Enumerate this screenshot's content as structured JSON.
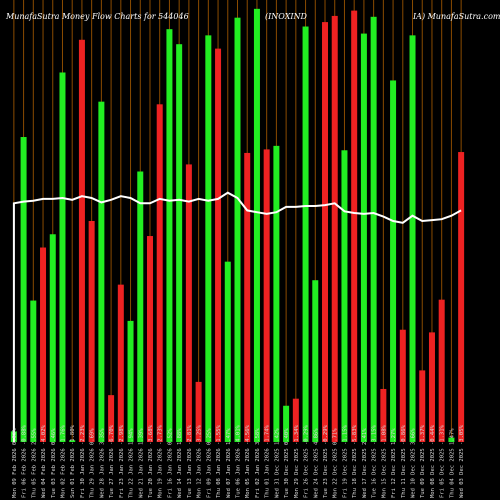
{
  "header": {
    "left": "MunafaSutra  Money Flow  Charts for 544046",
    "middle": "(INOXIND",
    "right": "IA) MunafaSutra.com"
  },
  "colors": {
    "background": "#000000",
    "up_bar": "#22ee22",
    "down_bar": "#ee2222",
    "grid_line": "#8a4b00",
    "flow_line": "#ffffff"
  },
  "chart_data": {
    "type": "bar",
    "title": "MunafaSutra  Money Flow  Charts for 544046",
    "categories": [
      "Mon 09 Feb 2026 0.93%",
      "Fri 06 Feb 2026 -0.88%",
      "Thu 05 Feb 2026 2.55%",
      "Wed 04 Feb 2026 -4.02%",
      "Tue 03 Feb 2026 0.46%",
      "Mon 02 Feb 2026 -1.76%",
      "Sun 01 Feb 2026 -1.80%",
      "Fri 30 Jan 2026 -2.23%",
      "Thu 29 Jan 2026 0.69%",
      "Wed 28 Jan 2026 3.35%",
      "Tue 27 Jan 2026 -6.70%",
      "Fri 23 Jan 2026 -2.98%",
      "Thu 22 Jan 2026 1.94%",
      "Wed 21 Jan 2026 1.39%",
      "Tue 20 Jan 2026 -3.68%",
      "Mon 19 Jan 2026 -2.73%",
      "Fri 16 Jan 2026 0.52%",
      "Wed 14 Jan 2026 1.88%",
      "Tue 13 Jan 2026 -2.81%",
      "Mon 12 Jan 2026 -3.25%",
      "Fri 09 Jan 2026 0.25%",
      "Thu 08 Jan 2026 -1.55%",
      "Wed 07 Jan 2026 1.47%",
      "Tue 06 Jan 2026 -4.01%",
      "Mon 05 Jan 2026 -4.56%",
      "Fri 02 Jan 2026 3.58%",
      "Thu 01 Jan 2026 -1.74%",
      "Wed 31 Dec 2025 1.42%",
      "Tue 30 Dec 2025 0.40%",
      "Mon 29 Dec 2025 -1.34%",
      "Fri 26 Dec 2025 -0.29%",
      "Wed 24 Dec 2025 4.86%",
      "Tue 23 Dec 2025 -0.29%",
      "Mon 22 Dec 2025 0.71%",
      "Fri 19 Dec 2025 -1.15%",
      "Thu 18 Dec 2025 -5.83%",
      "Wed 17 Dec 2025 2.41%",
      "Tue 16 Dec 2025 -3.15%",
      "Mon 15 Dec 2025 -1.08%",
      "Fri 12 Dec 2025 1.27%",
      "Thu 11 Dec 2025 -0.86%",
      "Wed 10 Dec 2025 3.66%",
      "Tue 09 Dec 2025 -1.37%",
      "Mon 08 Dec 2025 -0.44%",
      "Fri 05 Dec 2025 -1.31%",
      "Thu 04 Dec 2025 1.47%",
      "Wed 03 Dec 2025 -3.05%"
    ],
    "bar_direction": [
      "up",
      "up",
      "up",
      "red",
      "up",
      "up",
      "up",
      "red",
      "red",
      "up",
      "red",
      "red",
      "up",
      "up",
      "red",
      "red",
      "up",
      "up",
      "red",
      "red",
      "up",
      "red",
      "up",
      "up",
      "red",
      "up",
      "red",
      "up",
      "up",
      "red",
      "up",
      "up",
      "red",
      "red",
      "up",
      "red",
      "up",
      "up",
      "red",
      "up",
      "red",
      "up",
      "red",
      "red",
      "red",
      "up",
      "red"
    ],
    "values": [
      12,
      345,
      160,
      220,
      235,
      418,
      2,
      455,
      250,
      385,
      53,
      178,
      137,
      306,
      233,
      382,
      467,
      450,
      314,
      68,
      460,
      445,
      204,
      480,
      327,
      490,
      331,
      335,
      41,
      49,
      470,
      183,
      475,
      482,
      330,
      488,
      462,
      481,
      60,
      409,
      127,
      460,
      81,
      124,
      161,
      5,
      328
    ],
    "flow_line": [
      270,
      272,
      273,
      275,
      275,
      276,
      274,
      278,
      276,
      271,
      274,
      278,
      276,
      270,
      270,
      275,
      273,
      274,
      272,
      275,
      273,
      275,
      282,
      276,
      262,
      260,
      258,
      260,
      266,
      266,
      267,
      267,
      268,
      270,
      261,
      259,
      258,
      259,
      255,
      250,
      248,
      256,
      250,
      251,
      252,
      256,
      262
    ],
    "ylim": [
      0,
      500
    ],
    "grid": true,
    "xlabel": "",
    "ylabel": ""
  }
}
